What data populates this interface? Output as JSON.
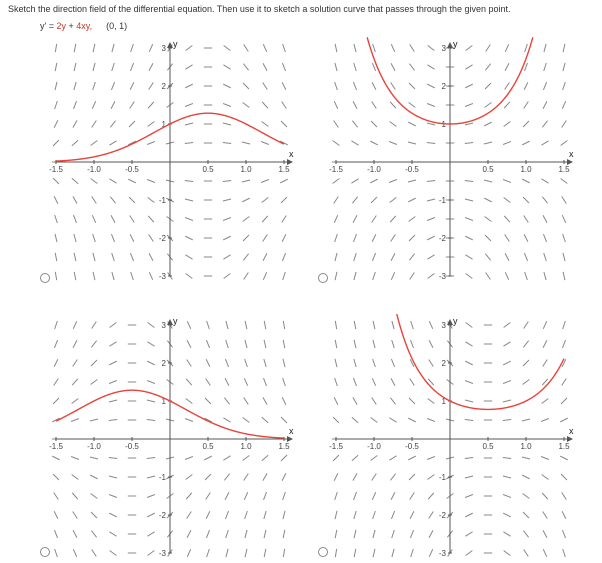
{
  "prompt_text": "Sketch the direction field of the differential equation. Then use it to sketch a solution curve that passes through the given point.",
  "equation": {
    "lhs": "y' = ",
    "term1": "2y",
    "plus": " + ",
    "term2": "4xy,",
    "point": "(0, 1)"
  },
  "axes": {
    "x_name": "x",
    "y_name": "y",
    "x_ticks": [
      "-1.5",
      "-1.0",
      "-0.5",
      "0.5",
      "1.0",
      "1.5"
    ],
    "y_ticks": [
      "3",
      "2",
      "1",
      "-1",
      "-2",
      "-3"
    ]
  },
  "colors": {
    "curve": "#e8433a",
    "field": "#888888",
    "axis": "#555555"
  },
  "options": [
    {
      "id": "a",
      "curve": "bell-peak-right",
      "selected": false
    },
    {
      "id": "b",
      "curve": "u-shape",
      "selected": false
    },
    {
      "id": "c",
      "curve": "bell-peak-left",
      "selected": false
    },
    {
      "id": "d",
      "curve": "u-shape-shifted-right",
      "selected": false
    }
  ]
}
